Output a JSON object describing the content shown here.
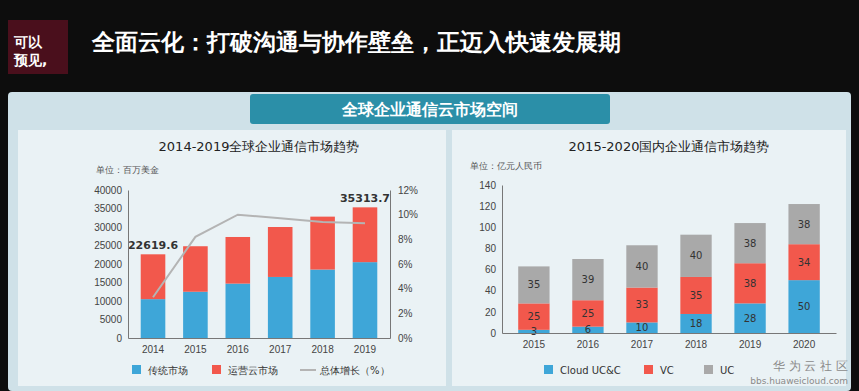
{
  "page": {
    "title": "全面云化：打破沟通与协作壁垒，正迈入快速发展期",
    "logo": [
      "可以",
      "预见,"
    ],
    "banner": "全球企业通信云市场空间",
    "watermark": [
      "华 为 云 社 区",
      "bbs.huaweicloud.com"
    ]
  },
  "chart_data": [
    {
      "type": "bar",
      "title": "2014-2019全球企业通信市场趋势",
      "subtitle": "单位：百万美金",
      "stacked": true,
      "grid": false,
      "legend": "bottom",
      "categories": [
        "2014",
        "2015",
        "2016",
        "2017",
        "2018",
        "2019"
      ],
      "series": [
        {
          "name": "传统市场",
          "color": "#3ea6d8",
          "values": [
            10500,
            12500,
            14700,
            16500,
            18500,
            20500
          ]
        },
        {
          "name": "运营云市场",
          "color": "#f2584c",
          "values": [
            12119.6,
            12300,
            12600,
            13500,
            14300,
            14813.7
          ]
        },
        {
          "name": "总体增长（%）",
          "type": "line",
          "axis": "y2",
          "color": "#b4b4b4",
          "line_style": "solid",
          "values": [
            3.3,
            8.2,
            10,
            9.7,
            9.4,
            9.3
          ]
        }
      ],
      "totals": [
        22619.6,
        null,
        null,
        null,
        null,
        35313.7
      ],
      "ylim": [
        0,
        40000
      ],
      "yticks": [
        0,
        5000,
        10000,
        15000,
        20000,
        25000,
        30000,
        35000,
        40000
      ],
      "y2lim": [
        0,
        12
      ],
      "y2ticks": [
        {
          "value": 0,
          "label": "0%"
        },
        {
          "value": 2,
          "label": "2%"
        },
        {
          "value": 4,
          "label": "4%"
        },
        {
          "value": 6,
          "label": "6%"
        },
        {
          "value": 8,
          "label": "8%"
        },
        {
          "value": 10,
          "label": "10%"
        },
        {
          "value": 12,
          "label": "12%"
        }
      ]
    },
    {
      "type": "bar",
      "title": "2015-2020国内企业通信市场趋势",
      "subtitle": "单位：亿元人民币",
      "stacked": true,
      "grid": false,
      "legend": "bottom",
      "data_labels": true,
      "categories": [
        "2015",
        "2016",
        "2017",
        "2018",
        "2019",
        "2020"
      ],
      "series": [
        {
          "name": "Cloud UC&C",
          "color": "#3ea6d8",
          "values": [
            3,
            6,
            10,
            18,
            28,
            50
          ]
        },
        {
          "name": "VC",
          "color": "#f2584c",
          "values": [
            25,
            25,
            33,
            35,
            38,
            34
          ]
        },
        {
          "name": "UC",
          "color": "#a9a9a9",
          "values": [
            35,
            39,
            40,
            40,
            38,
            38
          ]
        }
      ],
      "ylim": [
        0,
        140
      ],
      "yticks": [
        0,
        20,
        40,
        60,
        80,
        100,
        120,
        140
      ]
    }
  ]
}
